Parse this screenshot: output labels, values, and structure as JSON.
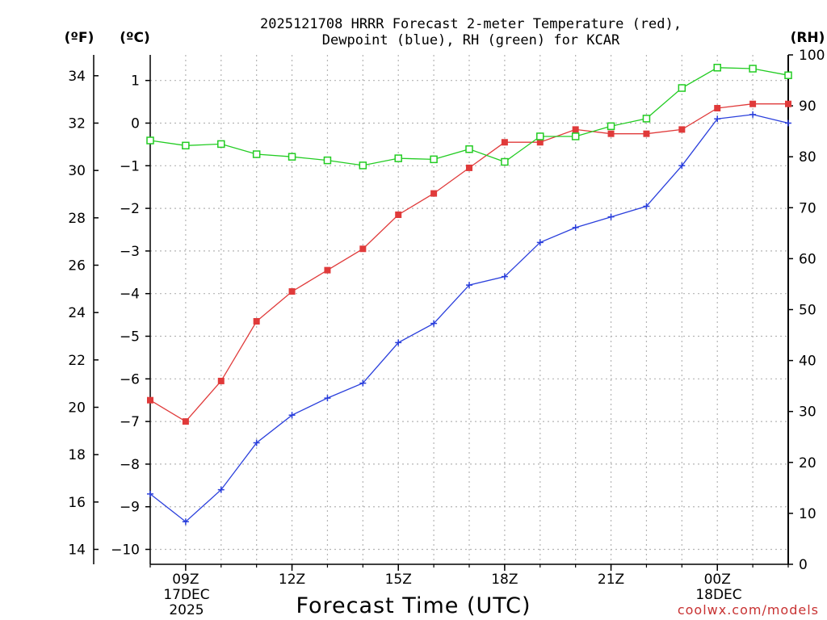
{
  "title": {
    "line1": "2025121708 HRRR Forecast 2-meter Temperature (red),",
    "line2": "Dewpoint (blue), RH (green) for KCAR"
  },
  "units": {
    "fahrenheit": "(ºF)",
    "celsius": "(ºC)",
    "rh": "(RH)"
  },
  "xlabel": "Forecast Time (UTC)",
  "watermark": "coolwx.com/models",
  "date_labels": {
    "start": [
      "17DEC",
      "2025"
    ],
    "end": [
      "18DEC"
    ]
  },
  "colors": {
    "temperature": "#e03a3a",
    "dewpoint": "#2a3fdc",
    "rh": "#22cc22",
    "grid": "#b4b4b4",
    "watermark": "#c83232"
  },
  "chart_data": {
    "type": "line",
    "x_hours": [
      8,
      9,
      10,
      11,
      12,
      13,
      14,
      15,
      16,
      17,
      18,
      19,
      20,
      21,
      22,
      23,
      24,
      25,
      26
    ],
    "x_range": [
      8,
      26
    ],
    "x_ticks": [
      {
        "hour": 9,
        "label": "09Z"
      },
      {
        "hour": 12,
        "label": "12Z"
      },
      {
        "hour": 15,
        "label": "15Z"
      },
      {
        "hour": 18,
        "label": "18Z"
      },
      {
        "hour": 21,
        "label": "21Z"
      },
      {
        "hour": 24,
        "label": "00Z"
      }
    ],
    "left_axis_c": {
      "range": [
        -10.35,
        1.6
      ],
      "ticks": [
        1,
        0,
        -1,
        -2,
        -3,
        -4,
        -5,
        -6,
        -7,
        -8,
        -9,
        -10
      ],
      "tick_labels": [
        "1",
        "0",
        "−1",
        "−2",
        "−3",
        "−4",
        "−5",
        "−6",
        "−7",
        "−8",
        "−9",
        "−10"
      ]
    },
    "left_axis_f": {
      "ticks": [
        34,
        32,
        30,
        28,
        26,
        24,
        22,
        20,
        18,
        16,
        14
      ],
      "tick_labels": [
        "34",
        "32",
        "30",
        "28",
        "26",
        "24",
        "22",
        "20",
        "18",
        "16",
        "14"
      ]
    },
    "right_axis_rh": {
      "range": [
        0,
        100
      ],
      "ticks": [
        100,
        90,
        80,
        70,
        60,
        50,
        40,
        30,
        20,
        10,
        0
      ],
      "tick_labels": [
        "100",
        "90",
        "80",
        "70",
        "60",
        "50",
        "40",
        "30",
        "20",
        "10",
        "0"
      ]
    },
    "series": [
      {
        "name": "Temperature (°C)",
        "color_key": "temperature",
        "marker": "filled-square",
        "axis": "left_c",
        "values": [
          -6.5,
          -7.0,
          -6.05,
          -4.65,
          -3.95,
          -3.45,
          -2.95,
          -2.15,
          -1.65,
          -1.05,
          -0.45,
          -0.45,
          -0.15,
          -0.25,
          -0.25,
          -0.15,
          0.35,
          0.45,
          0.45
        ]
      },
      {
        "name": "Dewpoint (°C)",
        "color_key": "dewpoint",
        "marker": "plus",
        "axis": "left_c",
        "values": [
          -8.7,
          -9.35,
          -8.6,
          -7.5,
          -6.85,
          -6.45,
          -6.1,
          -5.15,
          -4.7,
          -3.8,
          -3.6,
          -2.8,
          -2.45,
          -2.2,
          -1.95,
          -1.0,
          0.1,
          0.2,
          0.0
        ]
      },
      {
        "name": "Relative Humidity (%)",
        "color_key": "rh",
        "marker": "open-square",
        "axis": "right_rh",
        "values": [
          83.2,
          82.2,
          82.5,
          80.5,
          80.0,
          79.3,
          78.3,
          79.7,
          79.5,
          81.5,
          79.0,
          84.0,
          84.0,
          86.0,
          87.5,
          93.5,
          97.5,
          97.3,
          96.0
        ]
      }
    ]
  }
}
